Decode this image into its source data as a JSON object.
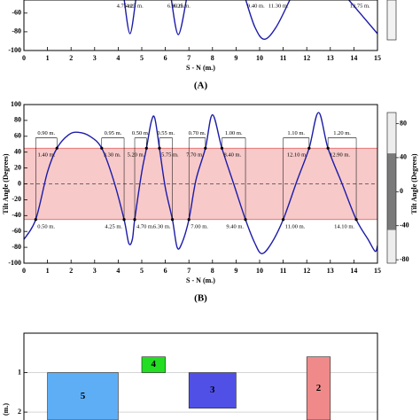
{
  "chart_data": [
    {
      "type": "line",
      "panel_label": "(A)",
      "xlabel": "S - N (m.)",
      "xlim": [
        0,
        15
      ],
      "xticks": [
        0,
        1,
        2,
        3,
        4,
        5,
        6,
        7,
        8,
        9,
        10,
        11,
        12,
        13,
        14,
        15
      ],
      "ylim": [
        -100,
        -46
      ],
      "yticks": [
        -60,
        -80,
        -100
      ],
      "band": [
        -45,
        45
      ],
      "band_color": "#f7c9c9",
      "band_edge_color": "#e05a5a",
      "line_color": "#1c1ca8",
      "x": [
        4.25,
        4.5,
        4.75,
        5.5,
        6.25,
        6.55,
        6.9,
        8.1,
        9.4,
        9.8,
        10.2,
        10.7,
        11.3,
        12.5,
        13.75,
        15
      ],
      "y": [
        -45,
        -82,
        -45,
        null,
        -45,
        -83,
        -45,
        null,
        -45,
        -75,
        -88,
        -75,
        -45,
        null,
        -45,
        -82
      ],
      "lower_level": -45,
      "crossings_lower": [
        {
          "x": 4.25,
          "text": "4.25 m."
        },
        {
          "x": 4.75,
          "text": "4.75 m."
        },
        {
          "x": 6.25,
          "text": "6.25 m."
        },
        {
          "x": 6.9,
          "text": "6.90 m."
        },
        {
          "x": 9.4,
          "text": "9.40 m."
        },
        {
          "x": 11.3,
          "text": "11.30 m."
        },
        {
          "x": 13.75,
          "text": "13.75 m."
        }
      ]
    },
    {
      "type": "line",
      "panel_label": "(B)",
      "xlabel": "S - N (m.)",
      "ylabel": "Tilt Angle (Degrees)",
      "xlim": [
        0,
        15
      ],
      "xticks": [
        0,
        1,
        2,
        3,
        4,
        5,
        6,
        7,
        8,
        9,
        10,
        11,
        12,
        13,
        14,
        15
      ],
      "ylim": [
        -100,
        100
      ],
      "yticks": [
        100,
        80,
        60,
        40,
        20,
        0,
        -20,
        -40,
        -60,
        -80,
        -100
      ],
      "y2label": "Tilt Angle (Degrees)",
      "y2lim": [
        -84,
        93
      ],
      "y2ticks": [
        80,
        40,
        0,
        -40,
        -80
      ],
      "colorbar_colors": [
        "#ededed",
        "#7a7a7a"
      ],
      "band": [
        -45,
        45
      ],
      "band_color": "#f7c9c9",
      "band_edge_color": "#e05a5a",
      "line_color": "#1c1ca8",
      "zero_line": true,
      "x": [
        0,
        0.5,
        1.0,
        1.4,
        1.9,
        2.3,
        2.8,
        3.3,
        3.8,
        4.25,
        4.45,
        4.6,
        4.7,
        5.0,
        5.2,
        5.4,
        5.55,
        5.75,
        6.0,
        6.3,
        6.5,
        6.7,
        7.0,
        7.3,
        7.7,
        8.0,
        8.4,
        8.9,
        9.4,
        9.8,
        10.1,
        10.5,
        11.0,
        11.6,
        12.1,
        12.5,
        12.9,
        13.5,
        14.1,
        14.6,
        14.9,
        15
      ],
      "y": [
        -70,
        -45,
        15,
        45,
        62,
        65,
        60,
        45,
        5,
        -45,
        -75,
        -70,
        -45,
        15,
        45,
        78,
        83,
        45,
        -5,
        -45,
        -80,
        -75,
        -45,
        5,
        45,
        87,
        45,
        0,
        -45,
        -75,
        -88,
        -75,
        -45,
        5,
        45,
        90,
        45,
        0,
        -45,
        -70,
        -85,
        -78
      ],
      "upper_level": 45,
      "lower_level": -45,
      "crossings_upper": [
        {
          "x": 1.4,
          "text": "1.40 m."
        },
        {
          "x": 3.3,
          "text": "3.30 m."
        },
        {
          "x": 5.2,
          "text": "5.20 m."
        },
        {
          "x": 5.75,
          "text": "5.75 m."
        },
        {
          "x": 7.7,
          "text": "7.70 m."
        },
        {
          "x": 8.4,
          "text": "8.40 m."
        },
        {
          "x": 12.1,
          "text": "12.10 m."
        },
        {
          "x": 12.9,
          "text": "12.90 m."
        }
      ],
      "crossings_lower": [
        {
          "x": 0.5,
          "text": "0.50 m."
        },
        {
          "x": 4.25,
          "text": "4.25 m."
        },
        {
          "x": 4.7,
          "text": "4.70 m."
        },
        {
          "x": 6.3,
          "text": "6.30 m."
        },
        {
          "x": 7.0,
          "text": "7.00 m."
        },
        {
          "x": 9.4,
          "text": "9.40 m."
        },
        {
          "x": 11.0,
          "text": "11.00 m."
        },
        {
          "x": 14.1,
          "text": "14.10 m."
        }
      ],
      "spans": [
        {
          "x": [
            0.5,
            1.4
          ],
          "text": "0.90 m."
        },
        {
          "x": [
            3.3,
            4.25
          ],
          "text": "0.95 m."
        },
        {
          "x": [
            4.7,
            5.2
          ],
          "text": "0.50 m."
        },
        {
          "x": [
            5.75,
            6.3
          ],
          "text": "0.55 m."
        },
        {
          "x": [
            7.0,
            7.7
          ],
          "text": "0.70 m."
        },
        {
          "x": [
            8.4,
            9.4
          ],
          "text": "1.00 m."
        },
        {
          "x": [
            11.0,
            12.1
          ],
          "text": "1.10 m."
        },
        {
          "x": [
            12.9,
            14.1
          ],
          "text": "1.20 m."
        }
      ]
    },
    {
      "type": "zones",
      "ylabel": "(m.)",
      "xlim": [
        0,
        15
      ],
      "ylim": [
        0,
        2.2
      ],
      "y_inverted": true,
      "yticks": [
        1,
        2
      ],
      "grid": true,
      "zones": [
        {
          "label": "5",
          "x": [
            1,
            4
          ],
          "y": [
            1,
            2.2
          ],
          "color": "#5eaef6"
        },
        {
          "label": "4",
          "x": [
            5,
            6
          ],
          "y": [
            0.6,
            1
          ],
          "color": "#22dd22"
        },
        {
          "label": "3",
          "x": [
            7,
            9
          ],
          "y": [
            1,
            1.9
          ],
          "color": "#5050e6"
        },
        {
          "label": "2",
          "x": [
            12,
            13
          ],
          "y": [
            0.6,
            2.2
          ],
          "color": "#f08a8a"
        }
      ]
    }
  ]
}
